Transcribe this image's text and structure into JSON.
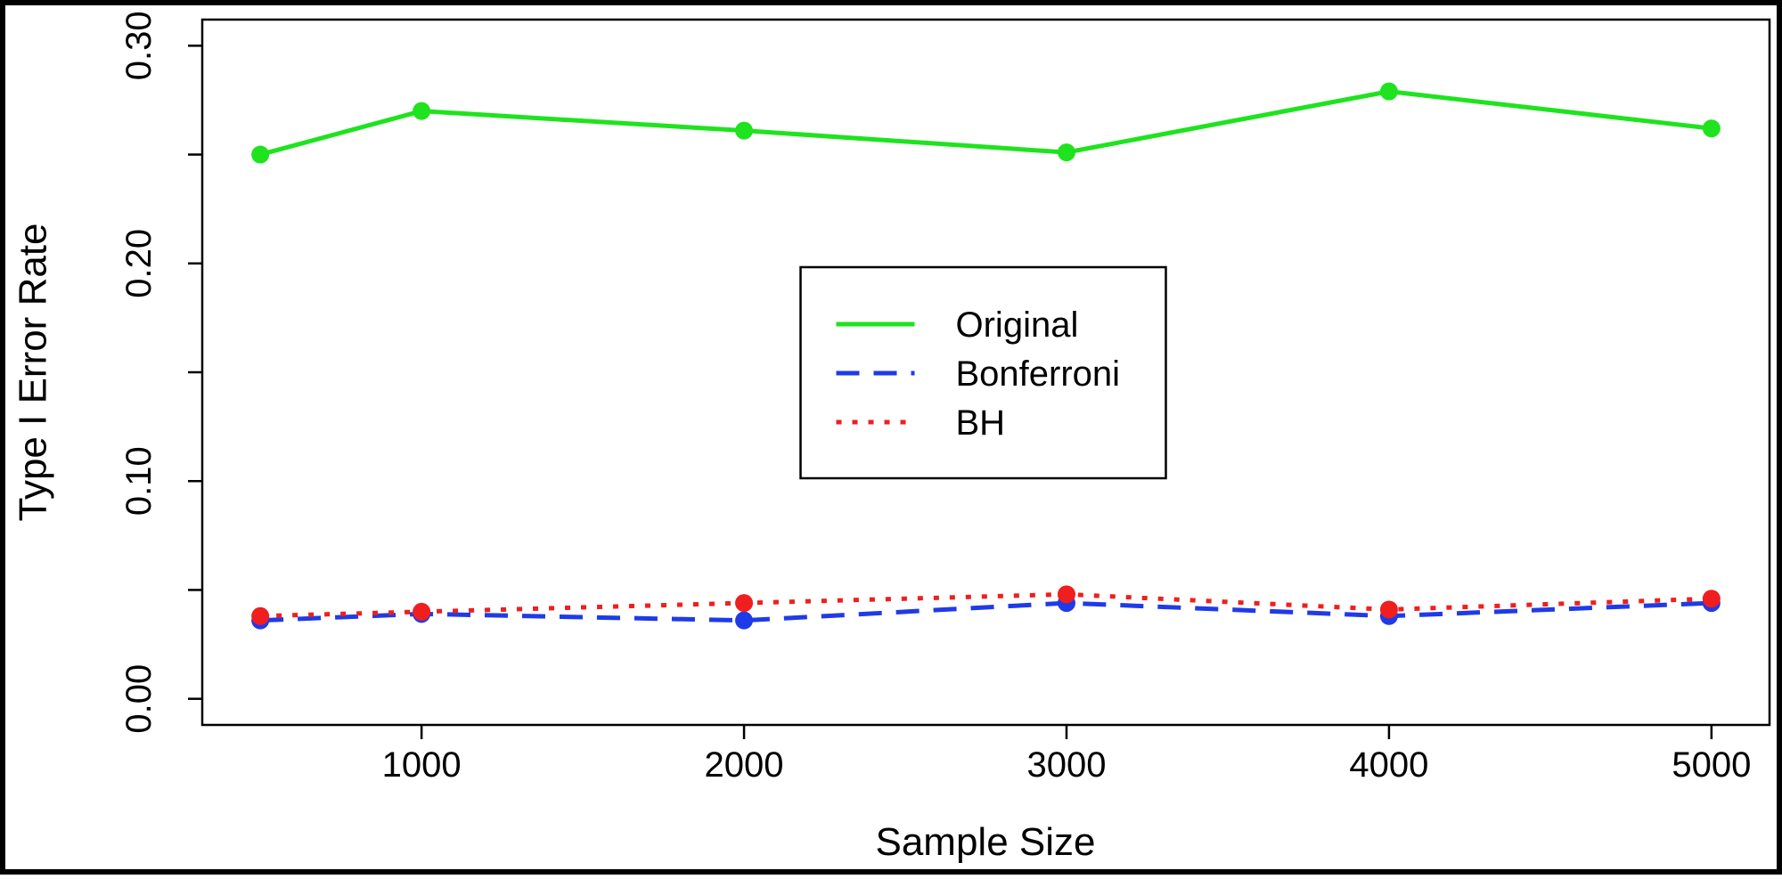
{
  "chart_data": {
    "type": "line",
    "x_label": "Sample Size",
    "y_label": "Type I Error Rate",
    "x": [
      500,
      1000,
      2000,
      3000,
      4000,
      5000
    ],
    "xlim": [
      320,
      5180
    ],
    "xticks": [
      1000,
      2000,
      3000,
      4000,
      5000
    ],
    "ylim": [
      -0.012,
      0.312
    ],
    "yticks": [
      {
        "value": 0,
        "label": "0.00"
      },
      {
        "value": 0.1,
        "label": "0.10"
      },
      {
        "value": 0.2,
        "label": "0.20"
      },
      {
        "value": 0.3,
        "label": "0.30"
      }
    ],
    "yminor_ticks": [
      0.05,
      0.15,
      0.25
    ],
    "legend_position": "center",
    "series": [
      {
        "name": "Original",
        "color": "#1ee31e",
        "linestyle": "solid",
        "values": [
          0.25,
          0.27,
          0.261,
          0.251,
          0.279,
          0.262
        ]
      },
      {
        "name": "Bonferroni",
        "color": "#1f3be8",
        "linestyle": "dashed",
        "values": [
          0.036,
          0.039,
          0.036,
          0.044,
          0.038,
          0.044
        ]
      },
      {
        "name": "BH",
        "color": "#f01e1e",
        "linestyle": "dotted",
        "values": [
          0.038,
          0.04,
          0.044,
          0.048,
          0.041,
          0.046
        ]
      }
    ]
  }
}
